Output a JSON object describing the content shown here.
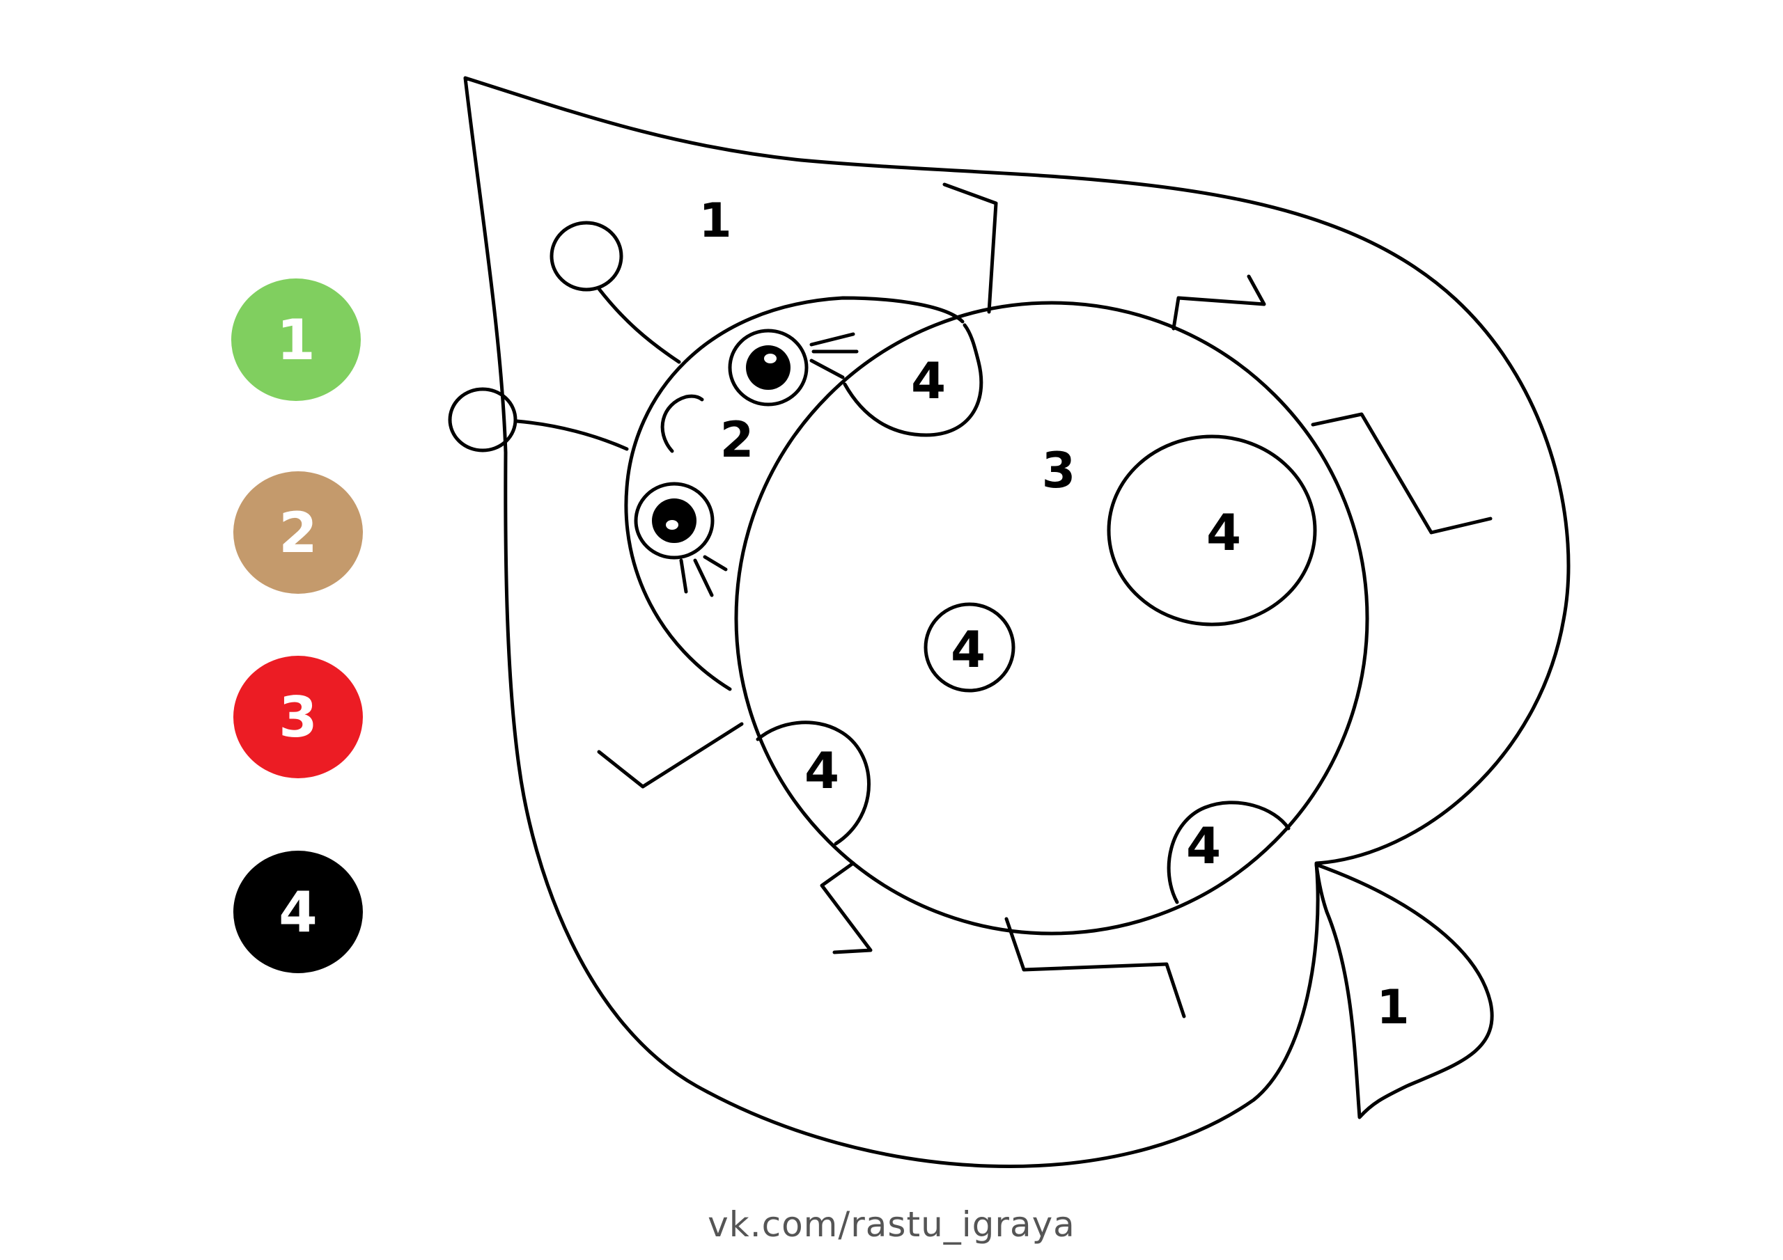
{
  "legend": [
    {
      "number": "1",
      "color": "#80cf5f"
    },
    {
      "number": "2",
      "color": "#c49a6c"
    },
    {
      "number": "3",
      "color": "#ec1c24"
    },
    {
      "number": "4",
      "color": "#000000"
    }
  ],
  "regions": {
    "leaf_top": "1",
    "leaf_tip": "1",
    "head": "2",
    "body": "3",
    "spot_top": "4",
    "spot_big": "4",
    "spot_center": "4",
    "spot_left": "4",
    "spot_bottom": "4"
  },
  "footer": {
    "credit": "vk.com/rastu_igraya"
  },
  "colors": {
    "outline": "#000000",
    "background": "#ffffff",
    "credit_text": "#555555"
  }
}
